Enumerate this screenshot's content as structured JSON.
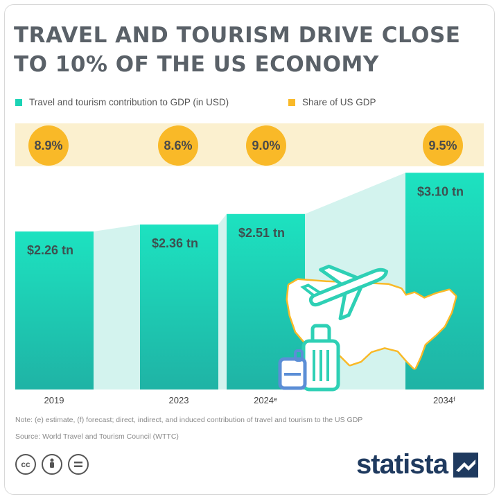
{
  "title": "TRAVEL AND TOURISM DRIVE CLOSE TO 10% OF THE US ECONOMY",
  "legend": [
    {
      "label": "Travel and tourism contribution to GDP (in USD)",
      "color": "#1bd3b5"
    },
    {
      "label": "Share of US GDP",
      "color": "#f9b928"
    }
  ],
  "chart_data": {
    "type": "bar",
    "categories": [
      "2019",
      "2023",
      "2024ᵉ",
      "2034ᶠ"
    ],
    "series": [
      {
        "name": "Travel and tourism contribution to GDP (in USD)",
        "values": [
          2.26,
          2.36,
          2.51,
          3.1
        ],
        "labels": [
          "$2.26 tn",
          "$2.36 tn",
          "$2.51 tn",
          "$3.10 tn"
        ]
      },
      {
        "name": "Share of US GDP",
        "values": [
          8.9,
          8.6,
          9.0,
          9.5
        ],
        "labels": [
          "8.9%",
          "8.6%",
          "9.0%",
          "9.5%"
        ]
      }
    ],
    "colors": {
      "bar_top": "#1de2c0",
      "bar_bottom": "#1fb3a5",
      "connector": "#d3f3ee",
      "share": "#f9b928",
      "map_outline": "#f9b928"
    }
  },
  "note": "Note: (e) estimate, (f) forecast; direct, indirect, and induced contribution of travel and tourism to the US GDP",
  "source": "Source: World Travel and Tourism Council (WTTC)",
  "license_icons": [
    "cc-icon",
    "attribution-icon",
    "no-derivatives-icon"
  ],
  "brand": "statista"
}
